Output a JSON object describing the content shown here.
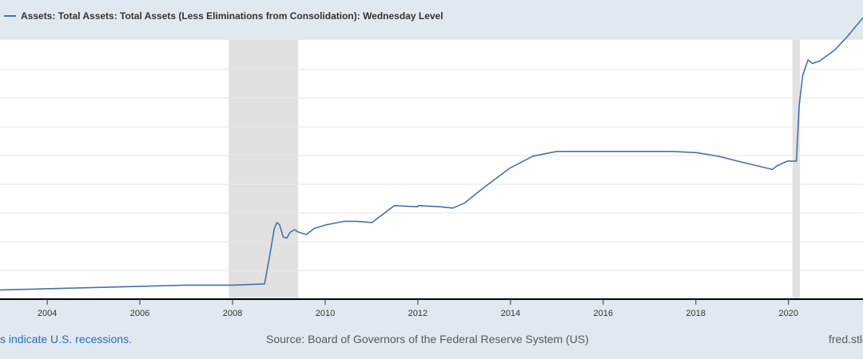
{
  "legend": {
    "label": "Assets: Total Assets: Total Assets (Less Eliminations from Consolidation): Wednesday Level"
  },
  "footer": {
    "recession_note": "s indicate U.S. recessions.",
    "source": "Source: Board of Governors of the Federal Reserve System (US)",
    "site": "fred.stlo"
  },
  "colors": {
    "line": "#4572a7",
    "background": "#e1e9f0",
    "plot_background": "#ffffff",
    "recession": "#e1e1e1",
    "gridline": "#e6e6e6",
    "note_link": "#2d6cb4"
  },
  "chart_data": {
    "type": "line",
    "title": "",
    "xlabel": "",
    "ylabel": "",
    "x_tick_labels": [
      "2004",
      "2006",
      "2008",
      "2010",
      "2012",
      "2014",
      "2016",
      "2018",
      "2020"
    ],
    "xlim": [
      "2002-12-25",
      "2021-08-11"
    ],
    "y_ticks_shown": false,
    "grid": "horizontal",
    "legend_position": "top-left",
    "recessions": [
      {
        "start": "2007-12-01",
        "end": "2009-06-01"
      },
      {
        "start": "2020-02-01",
        "end": "2020-04-01"
      }
    ],
    "series": [
      {
        "name": "Assets: Total Assets: Total Assets (Less Eliminations from Consolidation): Wednesday Level",
        "unit": "relative level (y-axis labels not shown)",
        "points": [
          [
            "2002-12-25",
            0.07
          ],
          [
            "2004-01-01",
            0.08
          ],
          [
            "2005-01-01",
            0.09
          ],
          [
            "2006-01-01",
            0.1
          ],
          [
            "2007-01-01",
            0.11
          ],
          [
            "2008-01-01",
            0.11
          ],
          [
            "2008-09-10",
            0.12
          ],
          [
            "2008-10-15",
            0.32
          ],
          [
            "2008-11-26",
            0.58
          ],
          [
            "2008-12-17",
            0.63
          ],
          [
            "2009-01-07",
            0.61
          ],
          [
            "2009-02-04",
            0.51
          ],
          [
            "2009-03-04",
            0.5
          ],
          [
            "2009-04-01",
            0.55
          ],
          [
            "2009-05-06",
            0.57
          ],
          [
            "2009-06-03",
            0.55
          ],
          [
            "2009-08-05",
            0.53
          ],
          [
            "2009-10-07",
            0.58
          ],
          [
            "2010-01-06",
            0.61
          ],
          [
            "2010-06-02",
            0.64
          ],
          [
            "2010-09-01",
            0.64
          ],
          [
            "2011-01-05",
            0.63
          ],
          [
            "2011-06-29",
            0.77
          ],
          [
            "2011-12-28",
            0.76
          ],
          [
            "2012-01-04",
            0.77
          ],
          [
            "2012-06-27",
            0.76
          ],
          [
            "2012-10-03",
            0.75
          ],
          [
            "2013-01-02",
            0.79
          ],
          [
            "2013-06-05",
            0.92
          ],
          [
            "2013-12-25",
            1.08
          ],
          [
            "2014-06-25",
            1.18
          ],
          [
            "2014-12-31",
            1.22
          ],
          [
            "2015-06-24",
            1.22
          ],
          [
            "2016-06-29",
            1.22
          ],
          [
            "2017-06-28",
            1.22
          ],
          [
            "2018-01-03",
            1.21
          ],
          [
            "2018-06-27",
            1.18
          ],
          [
            "2019-01-02",
            1.13
          ],
          [
            "2019-08-28",
            1.07
          ],
          [
            "2019-10-02",
            1.1
          ],
          [
            "2019-12-25",
            1.14
          ],
          [
            "2020-03-04",
            1.14
          ],
          [
            "2020-03-25",
            1.6
          ],
          [
            "2020-04-22",
            1.85
          ],
          [
            "2020-06-03",
            1.98
          ],
          [
            "2020-07-08",
            1.95
          ],
          [
            "2020-09-02",
            1.97
          ],
          [
            "2020-12-30",
            2.06
          ],
          [
            "2021-04-07",
            2.17
          ],
          [
            "2021-08-11",
            2.33
          ]
        ]
      }
    ]
  }
}
